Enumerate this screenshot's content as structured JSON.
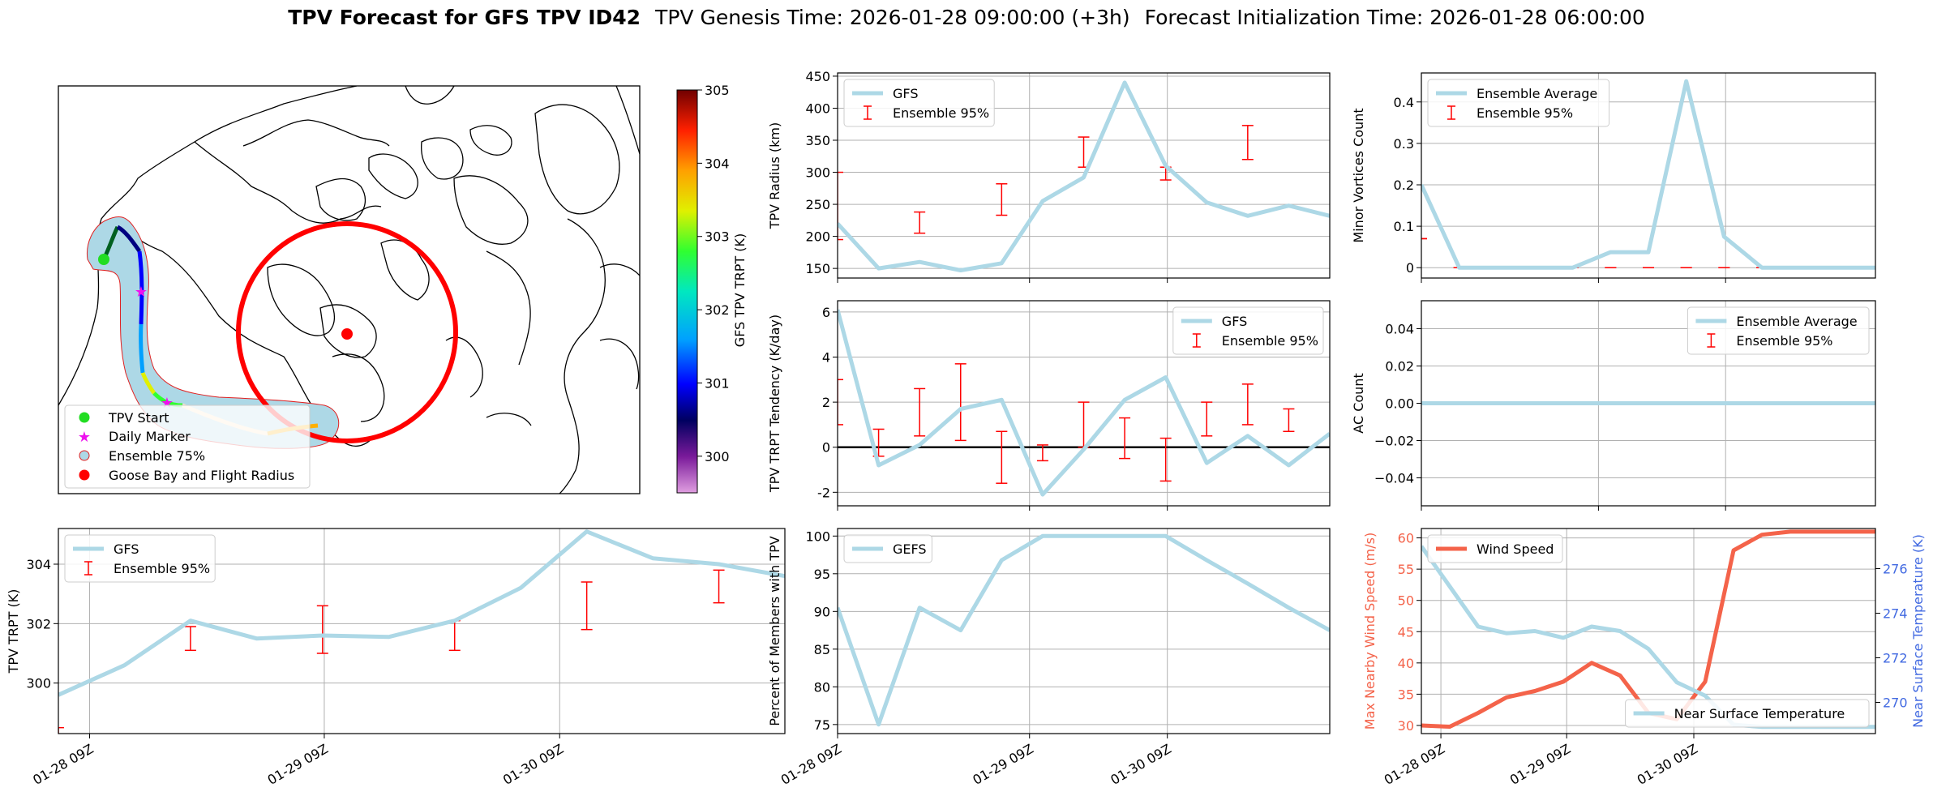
{
  "title": {
    "bold": "TPV Forecast for GFS TPV ID42",
    "genesis": "TPV Genesis Time: 2026-01-28 09:00:00 (+3h)",
    "init": "Forecast Initialization Time: 2026-01-28 06:00:00"
  },
  "colors": {
    "gfs_line": "#add8e6",
    "error_bar": "#ff0000",
    "wind_line": "#f4634a",
    "temp_axis": "#4169e1",
    "grid": "#b0b0b0"
  },
  "time_ticks": [
    "01-28 09Z",
    "01-29 09Z",
    "01-30 09Z"
  ],
  "map": {
    "legend": [
      {
        "label": "TPV Start",
        "marker": "circle",
        "color": "#22dd22"
      },
      {
        "label": "Daily Marker",
        "marker": "star",
        "color": "#ee11ee"
      },
      {
        "label": "Ensemble 75%",
        "marker": "circle-outline",
        "color": "#add8e6"
      },
      {
        "label": "Goose Bay and Flight Radius",
        "marker": "circle",
        "color": "#ff0000"
      }
    ],
    "colorbar": {
      "label": "GFS TPV TRPT (K)",
      "min": 299.5,
      "max": 305,
      "ticks": [
        300,
        301,
        302,
        303,
        304,
        305
      ]
    }
  },
  "chart_data": [
    {
      "id": "radius",
      "type": "line",
      "ylabel": "TPV Radius (km)",
      "ylim": [
        135,
        455
      ],
      "yticks": [
        150,
        200,
        250,
        300,
        350,
        400,
        450
      ],
      "legend": "top-left",
      "grid": true,
      "series": [
        {
          "name": "GFS",
          "x": [
            0,
            0.25,
            0.5,
            0.75,
            1,
            1.25,
            1.5,
            1.75,
            2,
            2.25,
            2.5,
            2.75,
            3
          ],
          "y": [
            220,
            150,
            160,
            147,
            158,
            255,
            292,
            440,
            310,
            253,
            232,
            248,
            232
          ]
        }
      ],
      "errorbars": {
        "name": "Ensemble 95%",
        "x": [
          0,
          0.5,
          1,
          1.5,
          2,
          2.5
        ],
        "lo": [
          195,
          205,
          233,
          308,
          288,
          320
        ],
        "hi": [
          300,
          238,
          282,
          355,
          308,
          373
        ]
      }
    },
    {
      "id": "tendency",
      "type": "line",
      "ylabel": "TPV TRPT Tendency (K/day)",
      "ylim": [
        -2.6,
        6.5
      ],
      "yticks": [
        -2,
        0,
        2,
        4,
        6
      ],
      "legend": "top-right",
      "grid": true,
      "zero_line": true,
      "series": [
        {
          "name": "GFS",
          "x": [
            0,
            0.25,
            0.5,
            0.75,
            1,
            1.25,
            1.5,
            1.75,
            2,
            2.25,
            2.5,
            2.75,
            3
          ],
          "y": [
            6.1,
            -0.8,
            0.1,
            1.7,
            2.1,
            -2.1,
            -0.1,
            2.1,
            3.1,
            -0.7,
            0.5,
            -0.8,
            0.6
          ]
        }
      ],
      "errorbars": {
        "name": "Ensemble 95%",
        "x": [
          0,
          0.25,
          0.5,
          0.75,
          1,
          1.25,
          1.5,
          1.75,
          2,
          2.25,
          2.5,
          2.75
        ],
        "lo": [
          1.0,
          -0.4,
          0.5,
          0.3,
          -1.6,
          -0.6,
          0.0,
          -0.5,
          -1.5,
          0.5,
          1.0,
          0.7
        ],
        "hi": [
          3.0,
          0.8,
          2.6,
          3.7,
          0.7,
          0.1,
          2.0,
          1.3,
          0.4,
          2.0,
          2.8,
          1.7
        ]
      }
    },
    {
      "id": "trpt",
      "type": "line",
      "ylabel": "TPV TRPT (K)",
      "ylim": [
        298.3,
        305.2
      ],
      "yticks": [
        300,
        302,
        304
      ],
      "legend": "top-left",
      "grid": true,
      "series": [
        {
          "name": "GFS",
          "x": [
            0,
            0.25,
            0.5,
            0.75,
            1,
            1.25,
            1.5,
            1.75,
            2,
            2.25,
            2.5,
            2.75
          ],
          "y": [
            299.6,
            300.6,
            302.1,
            301.5,
            301.6,
            301.55,
            302.1,
            303.2,
            305.1,
            304.2,
            304.0,
            303.6
          ]
        }
      ],
      "errorbars": {
        "name": "Ensemble 95%",
        "x": [
          0,
          0.5,
          1,
          1.5,
          2,
          2.5
        ],
        "lo": [
          297.5,
          301.1,
          301.0,
          301.1,
          301.8,
          302.7
        ],
        "hi": [
          298.5,
          301.9,
          302.6,
          302.1,
          303.4,
          303.8
        ]
      }
    },
    {
      "id": "members",
      "type": "line",
      "ylabel": "Percent of Members with TPV",
      "ylim": [
        73.8,
        101
      ],
      "yticks": [
        75,
        80,
        85,
        90,
        95,
        100
      ],
      "legend": "top-left",
      "grid": true,
      "series": [
        {
          "name": "GEFS",
          "x": [
            0,
            0.25,
            0.5,
            0.75,
            1,
            1.25,
            1.5,
            1.75,
            2,
            2.25,
            2.5,
            2.75,
            3
          ],
          "y": [
            90.5,
            75,
            90.5,
            87.5,
            96.8,
            100,
            100,
            100,
            100,
            96.8,
            93.7,
            90.5,
            87.5
          ]
        }
      ]
    },
    {
      "id": "minor",
      "type": "line",
      "ylabel": "Minor Vortices Count",
      "ylim": [
        -0.025,
        0.47
      ],
      "yticks": [
        0.0,
        0.1,
        0.2,
        0.3,
        0.4
      ],
      "legend": "top-left",
      "grid": true,
      "series": [
        {
          "name": "Ensemble Average",
          "x": [
            0,
            0.25,
            0.5,
            0.75,
            1,
            1.25,
            1.5,
            1.75,
            2,
            2.25,
            2.5,
            2.75,
            3
          ],
          "y": [
            0.2,
            0,
            0,
            0,
            0,
            0.0375,
            0.0375,
            0.45,
            0.075,
            0,
            0,
            0,
            0
          ]
        }
      ],
      "errorbars": {
        "name": "Ensemble 95%",
        "x": [
          0,
          0.25,
          0.5,
          0.75,
          1,
          1.25,
          1.5,
          1.75,
          2,
          2.25,
          2.5,
          2.75
        ],
        "lo": [
          0.07,
          0,
          0,
          0,
          0,
          0,
          0,
          0,
          0,
          0,
          0,
          0
        ],
        "hi": [
          0.07,
          0,
          0,
          0,
          0,
          0,
          0,
          0,
          0,
          0,
          0,
          0
        ]
      }
    },
    {
      "id": "ac",
      "type": "line",
      "ylabel": "AC Count",
      "ylim": [
        -0.055,
        0.055
      ],
      "yticks": [
        -0.04,
        -0.02,
        0.0,
        0.02,
        0.04
      ],
      "ytick_labels": [
        "−0.04",
        "−0.02",
        "0.00",
        "0.02",
        "0.04"
      ],
      "legend": "top-right",
      "grid": true,
      "series": [
        {
          "name": "Ensemble Average",
          "x": [
            0,
            3
          ],
          "y": [
            0,
            0
          ]
        }
      ],
      "errorbars": {
        "name": "Ensemble 95%",
        "x": [
          0,
          0.25,
          0.5,
          0.75,
          1,
          1.25,
          1.5,
          1.75,
          2,
          2.25,
          2.5,
          2.75
        ],
        "lo": [
          0,
          0,
          0,
          0,
          0,
          0,
          0,
          0,
          0,
          0,
          0,
          0
        ],
        "hi": [
          0,
          0,
          0,
          0,
          0,
          0,
          0,
          0,
          0,
          0,
          0,
          0
        ]
      }
    },
    {
      "id": "wind",
      "type": "line",
      "ylabel": "Max Nearby Wind Speed (m/s)",
      "ylim": [
        28.7,
        61.5
      ],
      "yticks": [
        30,
        35,
        40,
        45,
        50,
        55,
        60
      ],
      "y2label": "Near Surface Temperature (K)",
      "y2lim": [
        268.6,
        277.8
      ],
      "y2ticks": [
        270,
        272,
        274,
        276
      ],
      "grid": true,
      "series": [
        {
          "name": "Wind Speed",
          "axis": "left",
          "x": [
            0,
            0.125,
            0.25,
            0.375,
            0.5,
            0.625,
            0.75,
            0.875,
            1,
            1.125,
            1.25,
            1.375,
            1.5,
            1.625,
            1.75,
            1.875,
            2
          ],
          "y": [
            30,
            29.8,
            32,
            34.5,
            35.5,
            37,
            40,
            38,
            32,
            31,
            37,
            58,
            60.5,
            61,
            61,
            61,
            61
          ]
        },
        {
          "name": "Near Surface Temperature",
          "axis": "right",
          "x": [
            0,
            0.125,
            0.25,
            0.375,
            0.5,
            0.625,
            0.75,
            0.875,
            1,
            1.125,
            1.25,
            1.375,
            1.5,
            1.625,
            1.75,
            1.875,
            2
          ],
          "y": [
            277.0,
            275.2,
            273.4,
            273.1,
            273.2,
            272.9,
            273.4,
            273.2,
            272.4,
            270.9,
            270.3,
            269.0,
            268.9,
            268.9,
            268.9,
            268.9,
            268.9
          ]
        }
      ]
    }
  ]
}
